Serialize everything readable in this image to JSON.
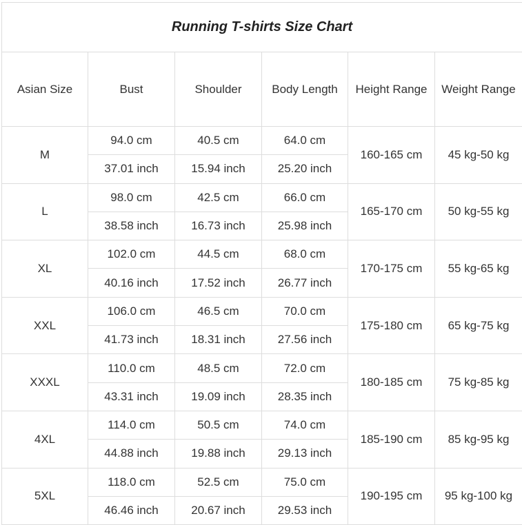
{
  "title": "Running T-shirts Size Chart",
  "headers": [
    "Asian Size",
    "Bust",
    "Shoulder",
    "Body Length",
    "Height Range",
    "Weight Range"
  ],
  "sizes": [
    {
      "size": "M",
      "bust_cm": "94.0 cm",
      "bust_in": "37.01 inch",
      "shoulder_cm": "40.5 cm",
      "shoulder_in": "15.94 inch",
      "length_cm": "64.0 cm",
      "length_in": "25.20 inch",
      "height": "160-165 cm",
      "weight": "45 kg-50 kg"
    },
    {
      "size": "L",
      "bust_cm": "98.0 cm",
      "bust_in": "38.58 inch",
      "shoulder_cm": "42.5 cm",
      "shoulder_in": "16.73 inch",
      "length_cm": "66.0 cm",
      "length_in": "25.98 inch",
      "height": "165-170 cm",
      "weight": "50 kg-55 kg"
    },
    {
      "size": "XL",
      "bust_cm": "102.0 cm",
      "bust_in": "40.16 inch",
      "shoulder_cm": "44.5 cm",
      "shoulder_in": "17.52 inch",
      "length_cm": "68.0 cm",
      "length_in": "26.77 inch",
      "height": "170-175 cm",
      "weight": "55 kg-65 kg"
    },
    {
      "size": "XXL",
      "bust_cm": "106.0 cm",
      "bust_in": "41.73 inch",
      "shoulder_cm": "46.5 cm",
      "shoulder_in": "18.31 inch",
      "length_cm": "70.0 cm",
      "length_in": "27.56 inch",
      "height": "175-180 cm",
      "weight": "65 kg-75 kg"
    },
    {
      "size": "XXXL",
      "bust_cm": "110.0 cm",
      "bust_in": "43.31 inch",
      "shoulder_cm": "48.5 cm",
      "shoulder_in": "19.09 inch",
      "length_cm": "72.0 cm",
      "length_in": "28.35 inch",
      "height": "180-185 cm",
      "weight": "75 kg-85 kg"
    },
    {
      "size": "4XL",
      "bust_cm": "114.0 cm",
      "bust_in": "44.88 inch",
      "shoulder_cm": "50.5 cm",
      "shoulder_in": "19.88 inch",
      "length_cm": "74.0 cm",
      "length_in": "29.13 inch",
      "height": "185-190 cm",
      "weight": "85 kg-95 kg"
    },
    {
      "size": "5XL",
      "bust_cm": "118.0 cm",
      "bust_in": "46.46 inch",
      "shoulder_cm": "52.5 cm",
      "shoulder_in": "20.67 inch",
      "length_cm": "75.0 cm",
      "length_in": "29.53 inch",
      "height": "190-195 cm",
      "weight": "95 kg-100 kg"
    }
  ]
}
